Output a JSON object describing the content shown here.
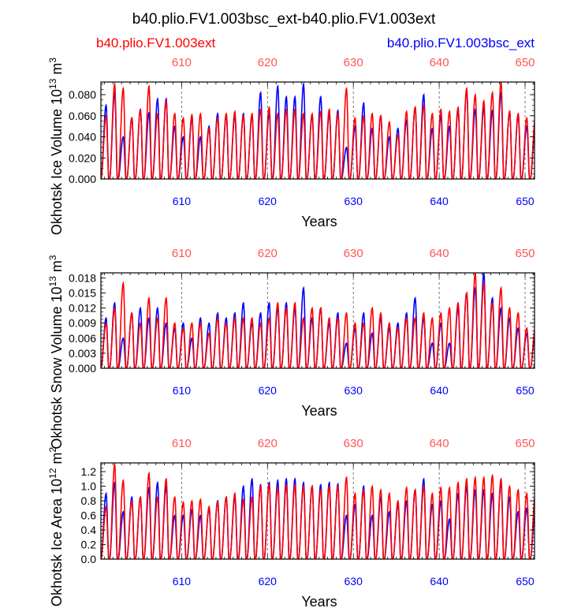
{
  "figure": {
    "title": "b40.plio.FV1.003bsc_ext-b40.plio.FV1.003ext",
    "legend_left": "b40.plio.FV1.003ext",
    "legend_right": "b40.plio.FV1.003bsc_ext"
  },
  "colors": {
    "ext": "#ff0000",
    "bsc_ext": "#0000ff",
    "axis": "#000000",
    "grid": "#555555"
  },
  "chart_data": [
    {
      "type": "line",
      "name": "ice-volume",
      "ylabel": "Okhotsk Ice Volume 10^13 m^3",
      "ylabel_base": "Okhotsk Ice Volume 10",
      "ylabel_exp": "13",
      "ylabel_unit": " m",
      "ylabel_unit_exp": "3",
      "xlabel": "Years",
      "xlim": [
        600.6,
        651.1
      ],
      "ylim": [
        0,
        0.092
      ],
      "yticks": [
        0.0,
        0.02,
        0.04,
        0.06,
        0.08
      ],
      "ytick_labels": [
        "0.000",
        "0.020",
        "0.040",
        "0.060",
        "0.080"
      ],
      "xticks": [
        610,
        620,
        630,
        640,
        650
      ],
      "xtick_labels": [
        "610",
        "620",
        "630",
        "640",
        "650"
      ],
      "series": [
        {
          "name": "b40.plio.FV1.003bsc_ext",
          "color": "#0000ff",
          "peak_year_fraction": 0.2,
          "start_year": 601,
          "annual_peaks": [
            0.052,
            0.07,
            0.082,
            0.04,
            0.058,
            0.066,
            0.063,
            0.076,
            0.076,
            0.05,
            0.04,
            0.058,
            0.04,
            0.05,
            0.062,
            0.06,
            0.06,
            0.062,
            0.06,
            0.082,
            0.062,
            0.088,
            0.078,
            0.078,
            0.09,
            0.06,
            0.078,
            0.062,
            0.065,
            0.03,
            0.05,
            0.072,
            0.048,
            0.06,
            0.04,
            0.048,
            0.056,
            0.068,
            0.08,
            0.048,
            0.06,
            0.05,
            0.065,
            0.084,
            0.066,
            0.068,
            0.065,
            0.082,
            0.064,
            0.06,
            0.05
          ]
        },
        {
          "name": "b40.plio.FV1.003ext",
          "color": "#ff0000",
          "peak_year_fraction": 0.2,
          "start_year": 601,
          "annual_peaks": [
            0.064,
            0.06,
            0.09,
            0.086,
            0.058,
            0.066,
            0.088,
            0.062,
            0.074,
            0.062,
            0.058,
            0.061,
            0.062,
            0.048,
            0.058,
            0.062,
            0.064,
            0.06,
            0.062,
            0.066,
            0.068,
            0.062,
            0.066,
            0.066,
            0.062,
            0.062,
            0.064,
            0.066,
            0.062,
            0.086,
            0.058,
            0.06,
            0.062,
            0.06,
            0.054,
            0.042,
            0.064,
            0.068,
            0.07,
            0.062,
            0.066,
            0.064,
            0.068,
            0.086,
            0.08,
            0.074,
            0.082,
            0.092,
            0.064,
            0.062,
            0.058
          ]
        }
      ]
    },
    {
      "type": "line",
      "name": "snow-volume",
      "ylabel": "Okhotsk Snow Volume 10^13 m^3",
      "ylabel_base": "Okhotsk Snow Volume 10",
      "ylabel_exp": "13",
      "ylabel_unit": " m",
      "ylabel_unit_exp": "3",
      "xlabel": "Years",
      "xlim": [
        600.6,
        651.1
      ],
      "ylim": [
        0,
        0.019
      ],
      "yticks": [
        0.0,
        0.003,
        0.006,
        0.009,
        0.012,
        0.015,
        0.018
      ],
      "ytick_labels": [
        "0.000",
        "0.003",
        "0.006",
        "0.009",
        "0.012",
        "0.015",
        "0.018"
      ],
      "xticks": [
        610,
        620,
        630,
        640,
        650
      ],
      "xtick_labels": [
        "610",
        "620",
        "630",
        "640",
        "650"
      ],
      "series": [
        {
          "name": "b40.plio.FV1.003bsc_ext",
          "color": "#0000ff",
          "peak_year_fraction": 0.2,
          "start_year": 601,
          "annual_peaks": [
            0.006,
            0.01,
            0.013,
            0.006,
            0.011,
            0.012,
            0.01,
            0.012,
            0.009,
            0.008,
            0.009,
            0.006,
            0.01,
            0.009,
            0.011,
            0.01,
            0.011,
            0.013,
            0.009,
            0.011,
            0.013,
            0.012,
            0.013,
            0.012,
            0.016,
            0.01,
            0.012,
            0.009,
            0.011,
            0.005,
            0.008,
            0.011,
            0.007,
            0.01,
            0.008,
            0.009,
            0.011,
            0.014,
            0.01,
            0.005,
            0.009,
            0.005,
            0.012,
            0.015,
            0.016,
            0.019,
            0.014,
            0.012,
            0.01,
            0.008,
            0.007
          ]
        },
        {
          "name": "b40.plio.FV1.003ext",
          "color": "#ff0000",
          "peak_year_fraction": 0.2,
          "start_year": 601,
          "annual_peaks": [
            0.01,
            0.009,
            0.012,
            0.017,
            0.011,
            0.009,
            0.014,
            0.01,
            0.014,
            0.009,
            0.008,
            0.009,
            0.009,
            0.007,
            0.01,
            0.009,
            0.01,
            0.01,
            0.01,
            0.009,
            0.01,
            0.013,
            0.012,
            0.013,
            0.01,
            0.012,
            0.012,
            0.01,
            0.01,
            0.011,
            0.009,
            0.009,
            0.012,
            0.011,
            0.009,
            0.008,
            0.01,
            0.01,
            0.011,
            0.01,
            0.011,
            0.012,
            0.013,
            0.015,
            0.019,
            0.017,
            0.013,
            0.016,
            0.012,
            0.011,
            0.008
          ]
        }
      ]
    },
    {
      "type": "line",
      "name": "ice-area",
      "ylabel": "Okhotsk Ice Area 10^12 m^2",
      "ylabel_base": "Okhotsk Ice Area 10",
      "ylabel_exp": "12",
      "ylabel_unit": " m",
      "ylabel_unit_exp": "2",
      "xlabel": "Years",
      "xlim": [
        600.6,
        651.1
      ],
      "ylim": [
        0,
        1.32
      ],
      "yticks": [
        0.0,
        0.2,
        0.4,
        0.6,
        0.8,
        1.0,
        1.2
      ],
      "ytick_labels": [
        "0.0",
        "0.2",
        "0.4",
        "0.6",
        "0.8",
        "1.0",
        "1.2"
      ],
      "xticks": [
        610,
        620,
        630,
        640,
        650
      ],
      "xtick_labels": [
        "610",
        "620",
        "630",
        "640",
        "650"
      ],
      "series": [
        {
          "name": "b40.plio.FV1.003bsc_ext",
          "color": "#0000ff",
          "peak_year_fraction": 0.2,
          "start_year": 601,
          "annual_peaks": [
            0.65,
            0.9,
            1.05,
            0.65,
            0.85,
            0.85,
            0.98,
            1.05,
            1.0,
            0.6,
            0.6,
            0.68,
            0.6,
            0.7,
            0.8,
            0.85,
            0.85,
            1.0,
            1.1,
            1.02,
            1.05,
            1.08,
            1.1,
            1.1,
            1.05,
            1.0,
            1.02,
            1.05,
            1.03,
            0.6,
            0.75,
            1.0,
            0.6,
            0.85,
            0.65,
            0.75,
            0.8,
            0.95,
            1.1,
            0.75,
            0.8,
            0.55,
            0.9,
            1.0,
            0.95,
            0.95,
            0.9,
            1.05,
            0.85,
            0.65,
            0.7
          ]
        },
        {
          "name": "b40.plio.FV1.003ext",
          "color": "#ff0000",
          "peak_year_fraction": 0.2,
          "start_year": 601,
          "annual_peaks": [
            0.82,
            0.72,
            1.3,
            1.08,
            0.8,
            0.85,
            1.18,
            0.85,
            1.1,
            0.85,
            0.78,
            0.8,
            0.82,
            0.72,
            0.78,
            0.85,
            0.9,
            0.82,
            0.85,
            1.0,
            1.02,
            0.98,
            1.02,
            1.02,
            1.0,
            1.0,
            0.95,
            1.0,
            1.0,
            1.12,
            0.9,
            0.95,
            1.0,
            0.95,
            0.9,
            0.8,
            0.98,
            0.95,
            1.0,
            0.9,
            0.98,
            0.98,
            1.05,
            1.1,
            1.12,
            1.12,
            1.15,
            1.1,
            1.0,
            0.95,
            0.9
          ]
        }
      ]
    }
  ]
}
